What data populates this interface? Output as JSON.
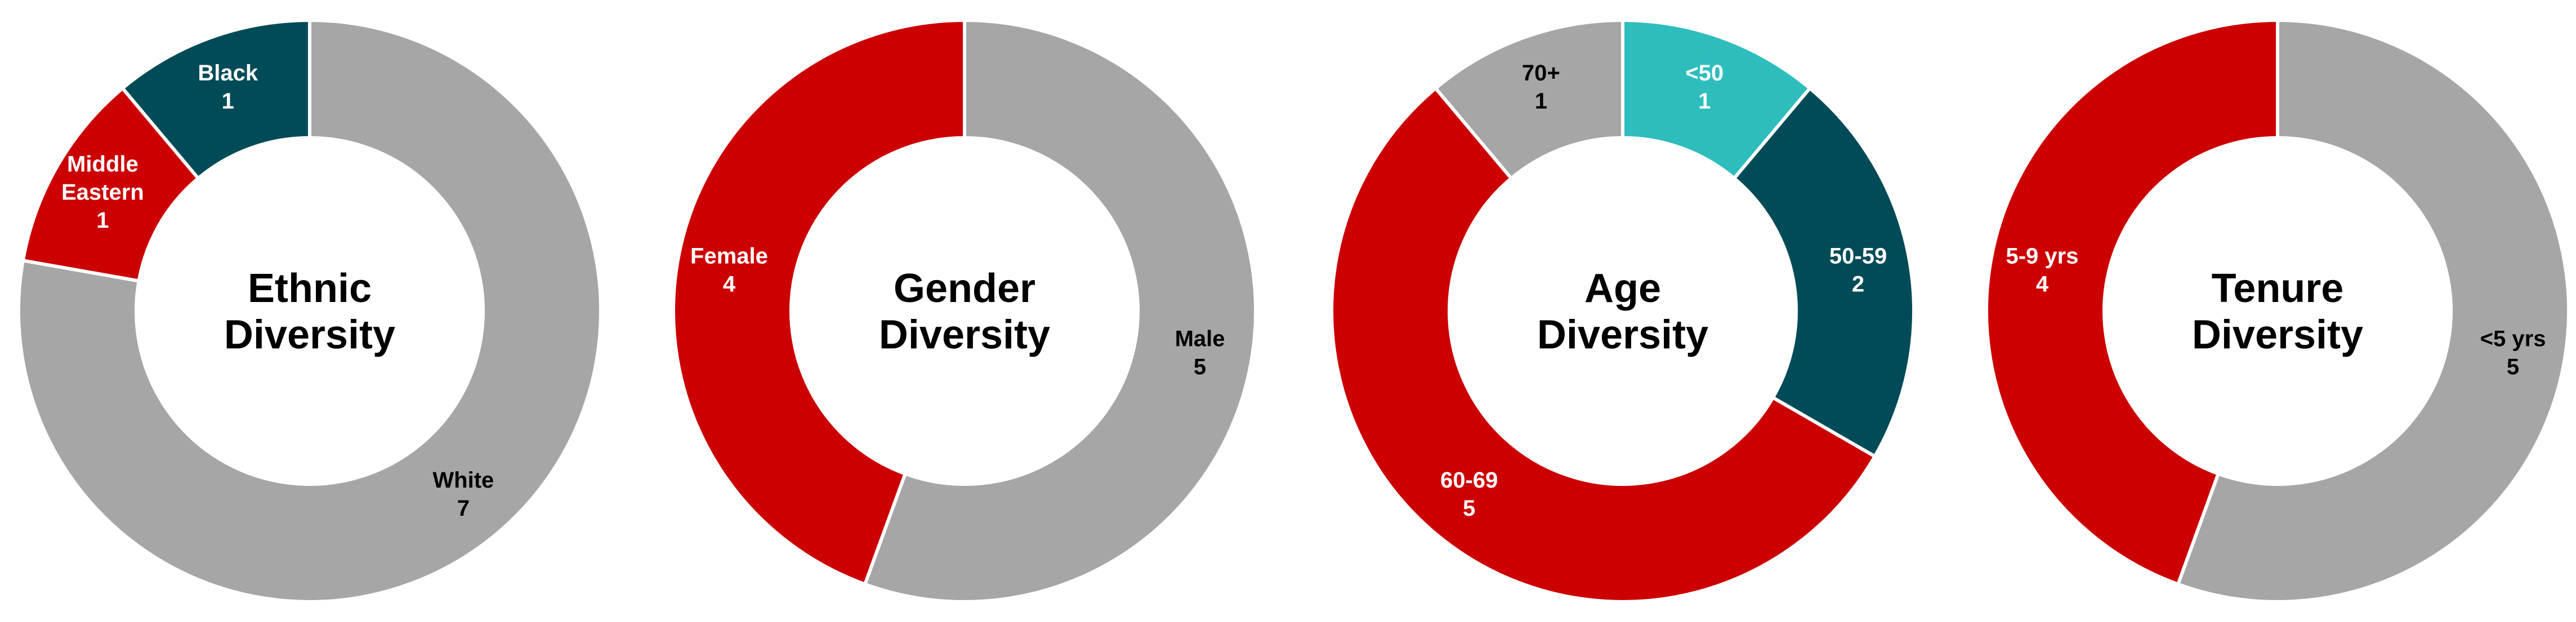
{
  "colors": {
    "red": "#cc0000",
    "gray": "#a6a6a6",
    "dark_teal": "#004b57",
    "light_teal": "#2ebdbd",
    "separator": "#ffffff",
    "label_dark": "#000000",
    "label_light": "#ffffff"
  },
  "chart_data": [
    {
      "type": "pie",
      "title": [
        "Ethnic",
        "Diversity"
      ],
      "slices": [
        {
          "label": "White",
          "value": 7,
          "color": "#a6a6a6",
          "text_color": "#000000"
        },
        {
          "label": "Middle Eastern",
          "value": 1,
          "color": "#cc0000",
          "text_color": "#ffffff"
        },
        {
          "label": "Black",
          "value": 1,
          "color": "#004b57",
          "text_color": "#ffffff"
        }
      ]
    },
    {
      "type": "pie",
      "title": [
        "Gender",
        "Diversity"
      ],
      "slices": [
        {
          "label": "Male",
          "value": 5,
          "color": "#a6a6a6",
          "text_color": "#000000"
        },
        {
          "label": "Female",
          "value": 4,
          "color": "#cc0000",
          "text_color": "#ffffff"
        }
      ]
    },
    {
      "type": "pie",
      "title": [
        "Age",
        "Diversity"
      ],
      "slices": [
        {
          "label": "<50",
          "value": 1,
          "color": "#2ebdbd",
          "text_color": "#ffffff"
        },
        {
          "label": "50-59",
          "value": 2,
          "color": "#004b57",
          "text_color": "#ffffff"
        },
        {
          "label": "60-69",
          "value": 5,
          "color": "#cc0000",
          "text_color": "#ffffff"
        },
        {
          "label": "70+",
          "value": 1,
          "color": "#a6a6a6",
          "text_color": "#000000"
        }
      ]
    },
    {
      "type": "pie",
      "title": [
        "Tenure",
        "Diversity"
      ],
      "slices": [
        {
          "label": "<5 yrs",
          "value": 5,
          "color": "#a6a6a6",
          "text_color": "#000000"
        },
        {
          "label": "5-9 yrs",
          "value": 4,
          "color": "#cc0000",
          "text_color": "#ffffff"
        }
      ]
    }
  ]
}
